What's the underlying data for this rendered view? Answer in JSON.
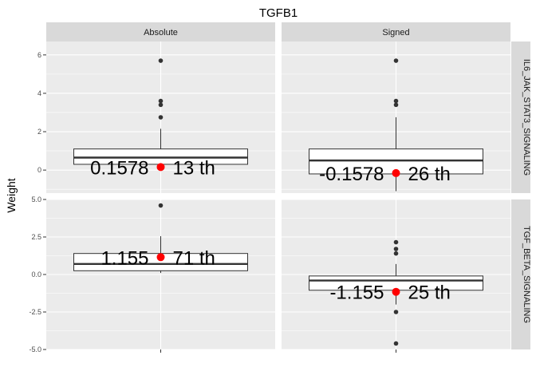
{
  "chart_data": {
    "type": "box",
    "title": "TGFB1",
    "ylabel": "Weight",
    "columns": [
      "Absolute",
      "Signed"
    ],
    "rows": [
      "IL6_JAK_STAT3_SIGNALING",
      "TGF_BETA_SIGNALING"
    ],
    "row_yticks": [
      [
        0,
        2,
        4,
        6
      ],
      [
        -5.0,
        -2.5,
        0.0,
        2.5,
        5.0
      ]
    ],
    "row_yticklabels": [
      [
        "0",
        "2",
        "4",
        "6"
      ],
      [
        "-5.0",
        "-2.5",
        "0.0",
        "2.5",
        "5.0"
      ]
    ],
    "row_ylim": [
      [
        -1.2,
        6.7
      ],
      [
        -5.0,
        5.0
      ]
    ],
    "panels": [
      {
        "row": 0,
        "col": 0,
        "box": {
          "q1": 0.3,
          "median": 0.65,
          "q3": 1.1,
          "whisker_low": 0.3,
          "whisker_high": 2.15
        },
        "outliers": [
          2.75,
          3.4,
          3.6,
          5.7
        ],
        "highlight": {
          "value": 0.1578,
          "label": "0.1578",
          "rank_label": "13 th"
        }
      },
      {
        "row": 0,
        "col": 1,
        "box": {
          "q1": -0.2,
          "median": 0.5,
          "q3": 1.1,
          "whisker_low": -1.1,
          "whisker_high": 2.75
        },
        "outliers": [
          3.4,
          3.6,
          5.7
        ],
        "highlight": {
          "value": -0.1578,
          "label": "-0.1578",
          "rank_label": "26 th"
        }
      },
      {
        "row": 1,
        "col": 0,
        "box": {
          "q1": 0.25,
          "median": 0.7,
          "q3": 1.4,
          "whisker_low": 0.1,
          "whisker_high": 2.55
        },
        "outliers": [
          4.6
        ],
        "highlight": {
          "value": 1.155,
          "label": "1.155",
          "rank_label": "71 th"
        }
      },
      {
        "row": 1,
        "col": 1,
        "box": {
          "q1": -1.05,
          "median": -0.4,
          "q3": -0.1,
          "whisker_low": -2.0,
          "whisker_high": 0.7
        },
        "outliers": [
          -4.6,
          -2.5,
          1.4,
          1.7,
          2.15
        ],
        "highlight": {
          "value": -1.155,
          "label": "-1.155",
          "rank_label": "25 th"
        }
      }
    ]
  }
}
